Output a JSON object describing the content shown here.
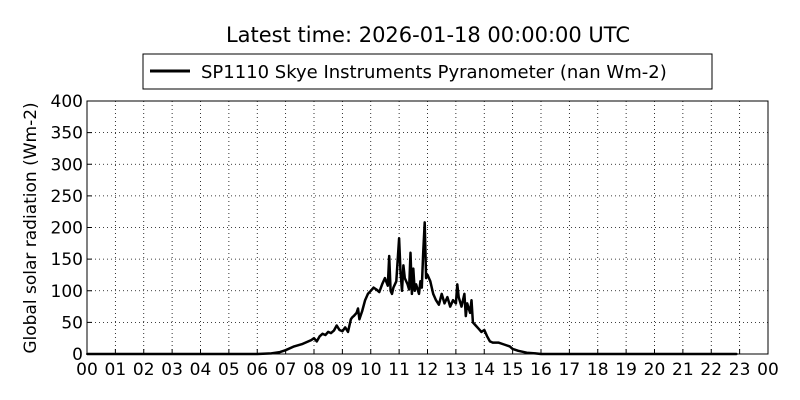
{
  "chart_data": {
    "type": "line",
    "title": "Latest time: 2026-01-18 00:00:00 UTC",
    "xlabel": "",
    "ylabel": "Global solar radiation (Wm-2)",
    "xlim": [
      0,
      24
    ],
    "ylim": [
      0,
      400
    ],
    "grid": true,
    "legend_position": "top-center",
    "xticks": [
      "00",
      "01",
      "02",
      "03",
      "04",
      "05",
      "06",
      "07",
      "08",
      "09",
      "10",
      "11",
      "12",
      "13",
      "14",
      "15",
      "16",
      "17",
      "18",
      "19",
      "20",
      "21",
      "22",
      "23",
      "00"
    ],
    "yticks": [
      0,
      50,
      100,
      150,
      200,
      250,
      300,
      350,
      400
    ],
    "series": [
      {
        "name": "SP1110 Skye Instruments Pyranometer (nan Wm-2)",
        "color": "#000000",
        "x": [
          0,
          6.0,
          6.5,
          6.8,
          7.0,
          7.3,
          7.6,
          7.9,
          8.0,
          8.1,
          8.2,
          8.3,
          8.4,
          8.5,
          8.6,
          8.7,
          8.8,
          8.9,
          9.0,
          9.1,
          9.2,
          9.3,
          9.35,
          9.4,
          9.5,
          9.55,
          9.6,
          9.7,
          9.8,
          9.9,
          10.0,
          10.1,
          10.2,
          10.3,
          10.4,
          10.5,
          10.6,
          10.65,
          10.7,
          10.75,
          10.8,
          10.9,
          11.0,
          11.05,
          11.1,
          11.15,
          11.2,
          11.3,
          11.35,
          11.4,
          11.45,
          11.5,
          11.55,
          11.6,
          11.7,
          11.75,
          11.8,
          11.85,
          11.9,
          11.95,
          12.0,
          12.1,
          12.2,
          12.3,
          12.4,
          12.5,
          12.6,
          12.7,
          12.8,
          12.9,
          13.0,
          13.05,
          13.1,
          13.2,
          13.3,
          13.35,
          13.4,
          13.5,
          13.55,
          13.6,
          13.7,
          13.8,
          13.9,
          14.0,
          14.1,
          14.2,
          14.3,
          14.5,
          14.7,
          14.9,
          15.0,
          15.2,
          15.5,
          15.8,
          16.0,
          22.9
        ],
        "y": [
          0,
          0,
          1,
          3,
          6,
          12,
          16,
          22,
          25,
          20,
          28,
          32,
          30,
          35,
          33,
          37,
          45,
          38,
          36,
          42,
          35,
          55,
          58,
          60,
          65,
          72,
          55,
          68,
          85,
          95,
          100,
          105,
          102,
          98,
          110,
          120,
          108,
          155,
          100,
          95,
          105,
          115,
          183,
          130,
          100,
          140,
          120,
          110,
          102,
          160,
          95,
          135,
          100,
          110,
          95,
          115,
          105,
          160,
          208,
          120,
          125,
          115,
          95,
          85,
          78,
          95,
          80,
          90,
          75,
          85,
          80,
          110,
          90,
          75,
          95,
          60,
          80,
          65,
          85,
          50,
          45,
          40,
          35,
          38,
          28,
          20,
          18,
          18,
          15,
          12,
          8,
          5,
          2,
          1,
          0,
          0
        ]
      }
    ]
  }
}
